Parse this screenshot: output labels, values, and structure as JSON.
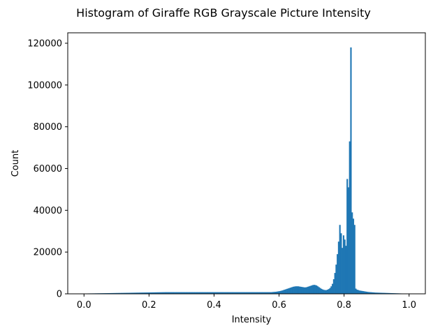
{
  "chart_data": {
    "type": "bar",
    "title": "Histogram of Giraffe RGB Grayscale Picture Intensity",
    "xlabel": "Intensity",
    "ylabel": "Count",
    "xlim": [
      -0.05,
      1.05
    ],
    "ylim": [
      0,
      125000
    ],
    "xticks": [
      0.0,
      0.2,
      0.4,
      0.6,
      0.8,
      1.0
    ],
    "xtick_labels": [
      "0.0",
      "0.2",
      "0.4",
      "0.6",
      "0.8",
      "1.0"
    ],
    "yticks": [
      0,
      20000,
      40000,
      60000,
      80000,
      100000,
      120000
    ],
    "ytick_labels": [
      "0",
      "20000",
      "40000",
      "60000",
      "80000",
      "100000",
      "120000"
    ],
    "grid": false,
    "bar_color": "#1f77b4",
    "bins": 256,
    "x_range": [
      0.0,
      1.0
    ],
    "values": [
      150,
      160,
      170,
      180,
      190,
      200,
      200,
      210,
      220,
      230,
      240,
      250,
      260,
      270,
      280,
      290,
      300,
      310,
      320,
      330,
      340,
      350,
      360,
      370,
      380,
      390,
      400,
      410,
      420,
      430,
      440,
      450,
      460,
      470,
      480,
      490,
      500,
      510,
      520,
      530,
      540,
      550,
      560,
      570,
      580,
      590,
      600,
      610,
      620,
      630,
      640,
      650,
      660,
      670,
      680,
      690,
      700,
      710,
      720,
      730,
      740,
      750,
      760,
      770,
      780,
      790,
      800,
      800,
      800,
      800,
      800,
      800,
      800,
      800,
      800,
      800,
      800,
      800,
      800,
      800,
      800,
      800,
      800,
      800,
      800,
      800,
      800,
      800,
      800,
      800,
      800,
      800,
      800,
      800,
      800,
      800,
      800,
      800,
      800,
      800,
      800,
      800,
      800,
      800,
      800,
      800,
      800,
      800,
      800,
      800,
      800,
      800,
      800,
      800,
      800,
      800,
      800,
      800,
      800,
      800,
      800,
      800,
      800,
      800,
      800,
      800,
      800,
      800,
      800,
      800,
      800,
      800,
      800,
      800,
      800,
      800,
      800,
      800,
      800,
      800,
      800,
      800,
      800,
      800,
      800,
      800,
      800,
      800,
      800,
      800,
      800,
      800,
      800,
      850,
      900,
      950,
      1000,
      1100,
      1200,
      1300,
      1450,
      1600,
      1800,
      2000,
      2200,
      2400,
      2600,
      2800,
      3000,
      3200,
      3400,
      3500,
      3600,
      3600,
      3600,
      3500,
      3400,
      3300,
      3200,
      3100,
      3100,
      3200,
      3400,
      3600,
      3800,
      4000,
      4200,
      4300,
      4200,
      4000,
      3600,
      3200,
      2800,
      2400,
      2100,
      1900,
      1800,
      1800,
      2000,
      2300,
      2800,
      3600,
      4800,
      7000,
      10000,
      14000,
      19000,
      25000,
      33000,
      29000,
      22000,
      28000,
      26000,
      23000,
      55000,
      51000,
      73000,
      118000,
      39000,
      36000,
      33000,
      2500,
      2000,
      1800,
      1600,
      1500,
      1400,
      1300,
      1200,
      1100,
      1000,
      900,
      850,
      800,
      750,
      700,
      650,
      600,
      580,
      560,
      540,
      520,
      500,
      480,
      460,
      440,
      420,
      400,
      380,
      360,
      340,
      320,
      300,
      280,
      260,
      240,
      220,
      200,
      180,
      160,
      140,
      120,
      100,
      80,
      60
    ]
  }
}
